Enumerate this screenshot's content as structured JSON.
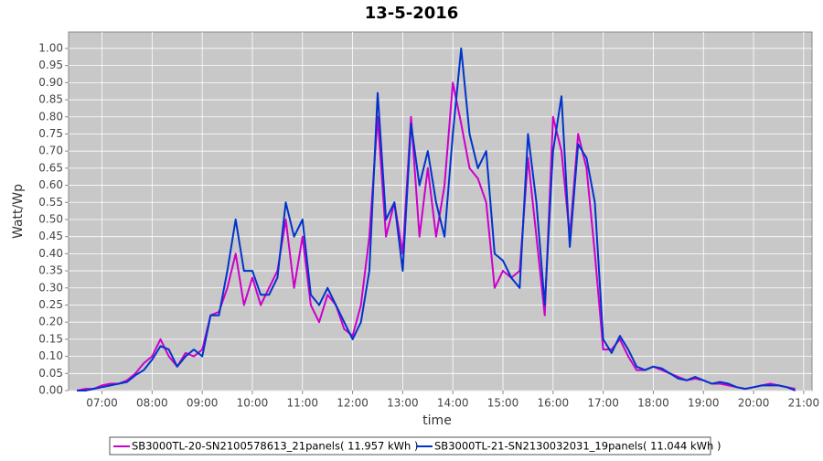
{
  "chart_data": {
    "type": "line",
    "title": "13-5-2016",
    "x_label": "time",
    "y_label": "Watt/Wp",
    "x": [
      "06:30",
      "06:40",
      "06:50",
      "07:00",
      "07:10",
      "07:20",
      "07:30",
      "07:40",
      "07:50",
      "08:00",
      "08:10",
      "08:20",
      "08:30",
      "08:40",
      "08:50",
      "09:00",
      "09:10",
      "09:20",
      "09:30",
      "09:40",
      "09:50",
      "10:00",
      "10:10",
      "10:20",
      "10:30",
      "10:40",
      "10:50",
      "11:00",
      "11:10",
      "11:20",
      "11:30",
      "11:40",
      "11:50",
      "12:00",
      "12:10",
      "12:20",
      "12:30",
      "12:40",
      "12:50",
      "13:00",
      "13:10",
      "13:20",
      "13:30",
      "13:40",
      "13:50",
      "14:00",
      "14:10",
      "14:20",
      "14:30",
      "14:40",
      "14:50",
      "15:00",
      "15:10",
      "15:20",
      "15:30",
      "15:40",
      "15:50",
      "16:00",
      "16:10",
      "16:20",
      "16:30",
      "16:40",
      "16:50",
      "17:00",
      "17:10",
      "17:20",
      "17:30",
      "17:40",
      "17:50",
      "18:00",
      "18:10",
      "18:20",
      "18:30",
      "18:40",
      "18:50",
      "19:00",
      "19:10",
      "19:20",
      "19:30",
      "19:40",
      "19:50",
      "20:00",
      "20:10",
      "20:20",
      "20:30",
      "20:40",
      "20:50"
    ],
    "series": [
      {
        "name": "SB3000TL-20-SN2100578613_21panels( 11.957 kWh )",
        "color": "#cc00cc",
        "values": [
          0,
          0.005,
          0.005,
          0.015,
          0.02,
          0.02,
          0.03,
          0.05,
          0.08,
          0.1,
          0.15,
          0.1,
          0.07,
          0.11,
          0.1,
          0.12,
          0.22,
          0.23,
          0.3,
          0.4,
          0.25,
          0.33,
          0.25,
          0.3,
          0.35,
          0.5,
          0.3,
          0.45,
          0.25,
          0.2,
          0.28,
          0.25,
          0.18,
          0.16,
          0.25,
          0.45,
          0.8,
          0.45,
          0.55,
          0.4,
          0.8,
          0.45,
          0.65,
          0.45,
          0.6,
          0.9,
          0.78,
          0.65,
          0.62,
          0.55,
          0.3,
          0.35,
          0.33,
          0.35,
          0.68,
          0.45,
          0.22,
          0.8,
          0.7,
          0.45,
          0.75,
          0.65,
          0.4,
          0.12,
          0.12,
          0.15,
          0.1,
          0.06,
          0.06,
          0.07,
          0.06,
          0.05,
          0.04,
          0.03,
          0.035,
          0.03,
          0.02,
          0.02,
          0.015,
          0.01,
          0.005,
          0.01,
          0.015,
          0.02,
          0.015,
          0.01,
          0.005
        ]
      },
      {
        "name": "SB3000TL-21-SN2130032031_19panels( 11.044 kWh )",
        "color": "#0033cc",
        "values": [
          0,
          0,
          0.005,
          0.01,
          0.015,
          0.02,
          0.025,
          0.045,
          0.06,
          0.09,
          0.13,
          0.12,
          0.07,
          0.1,
          0.12,
          0.1,
          0.22,
          0.22,
          0.35,
          0.5,
          0.35,
          0.35,
          0.28,
          0.28,
          0.33,
          0.55,
          0.45,
          0.5,
          0.28,
          0.25,
          0.3,
          0.25,
          0.2,
          0.15,
          0.2,
          0.35,
          0.87,
          0.5,
          0.55,
          0.35,
          0.78,
          0.6,
          0.7,
          0.55,
          0.45,
          0.75,
          1.0,
          0.75,
          0.65,
          0.7,
          0.4,
          0.38,
          0.33,
          0.3,
          0.75,
          0.55,
          0.25,
          0.7,
          0.86,
          0.42,
          0.72,
          0.68,
          0.55,
          0.15,
          0.11,
          0.16,
          0.12,
          0.07,
          0.06,
          0.07,
          0.065,
          0.05,
          0.035,
          0.03,
          0.04,
          0.03,
          0.02,
          0.025,
          0.02,
          0.01,
          0.005,
          0.01,
          0.015,
          0.015,
          0.015,
          0.01,
          0
        ]
      }
    ],
    "xlim": [
      "06:20",
      "21:10"
    ],
    "xticks": [
      "07:00",
      "08:00",
      "09:00",
      "10:00",
      "11:00",
      "12:00",
      "13:00",
      "14:00",
      "15:00",
      "16:00",
      "17:00",
      "18:00",
      "19:00",
      "20:00",
      "21:00"
    ],
    "ylim": [
      0,
      1.048
    ],
    "yticks": [
      {
        "value": 0,
        "label": "0.00"
      },
      {
        "value": 0.05,
        "label": "0.05"
      },
      {
        "value": 0.1,
        "label": "0.10"
      },
      {
        "value": 0.15,
        "label": "0.15"
      },
      {
        "value": 0.2,
        "label": "0.20"
      },
      {
        "value": 0.25,
        "label": "0.25"
      },
      {
        "value": 0.3,
        "label": "0.30"
      },
      {
        "value": 0.35,
        "label": "0.35"
      },
      {
        "value": 0.4,
        "label": "0.40"
      },
      {
        "value": 0.45,
        "label": "0.45"
      },
      {
        "value": 0.5,
        "label": "0.50"
      },
      {
        "value": 0.55,
        "label": "0.55"
      },
      {
        "value": 0.6,
        "label": "0.60"
      },
      {
        "value": 0.65,
        "label": "0.65"
      },
      {
        "value": 0.7,
        "label": "0.70"
      },
      {
        "value": 0.75,
        "label": "0.75"
      },
      {
        "value": 0.8,
        "label": "0.80"
      },
      {
        "value": 0.85,
        "label": "0.85"
      },
      {
        "value": 0.9,
        "label": "0.90"
      },
      {
        "value": 0.95,
        "label": "0.95"
      },
      {
        "value": 1,
        "label": "1.00"
      }
    ],
    "grid": true,
    "legend": "bottom"
  }
}
